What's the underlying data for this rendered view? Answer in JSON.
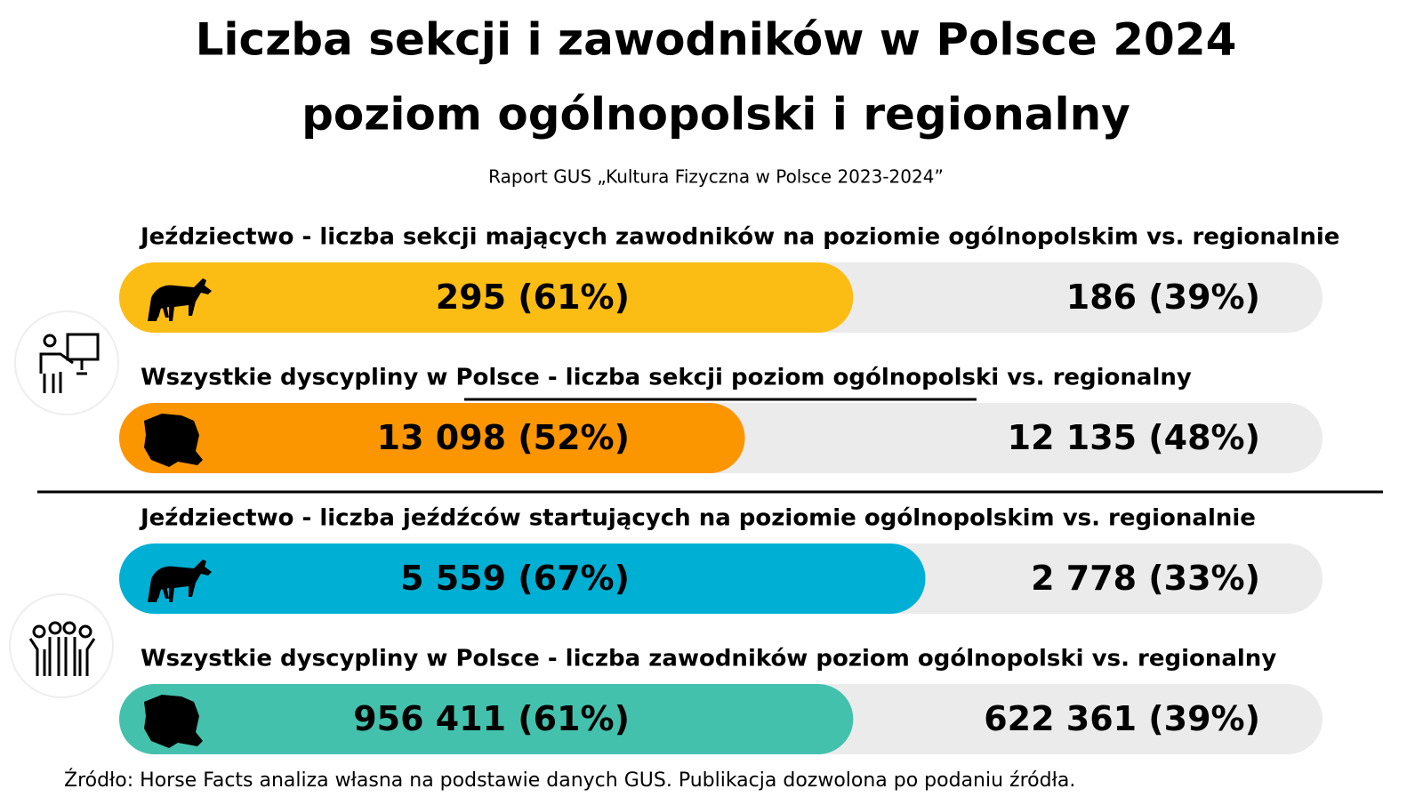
{
  "title": "Liczba sekcji i zawodników w Polsce 2024",
  "title_line2": "poziom ogólnopolski i regionalny",
  "subtitle": "Raport GUS „Kultura Fizyczna w Polsce 2023-2024”",
  "source": "Źródło: Horse Facts analiza własna na podstawie danych GUS. Publikacja dozwolona po podaniu źródła.",
  "chart_data": [
    {
      "type": "bar",
      "title": "Jeździectwo - liczba sekcji mających zawodników na poziomie ogólnopolskim vs. regionalnie",
      "values": [
        61,
        39
      ],
      "value_labels": [
        "295 (61%)",
        "186 (39%)"
      ],
      "color": "#fbbc14",
      "track_color": "#ebebeb"
    },
    {
      "type": "bar",
      "title": "Wszystkie dyscypliny w Polsce - liczba sekcji poziom ogólnopolski vs. regionalny",
      "values": [
        52,
        48
      ],
      "value_labels": [
        "13 098 (52%)",
        "12 135 (48%)"
      ],
      "color": "#fb9600",
      "track_color": "#ebebeb"
    },
    {
      "type": "bar",
      "title": "Jeździectwo - liczba jeźdźców startujących na poziomie ogólnopolskim vs. regionalnie",
      "values": [
        67,
        33
      ],
      "value_labels": [
        "5 559 (67%)",
        "2 778 (33%)"
      ],
      "color": "#00b0d4",
      "track_color": "#ebebeb"
    },
    {
      "type": "bar",
      "title": "Wszystkie dyscypliny w Polsce - liczba zawodników poziom ogólnopolski vs. regionalny",
      "values": [
        61,
        39
      ],
      "value_labels": [
        "956 411 (61%)",
        "622 361 (39%)"
      ],
      "color": "#44c1ad",
      "track_color": "#ebebeb"
    }
  ]
}
